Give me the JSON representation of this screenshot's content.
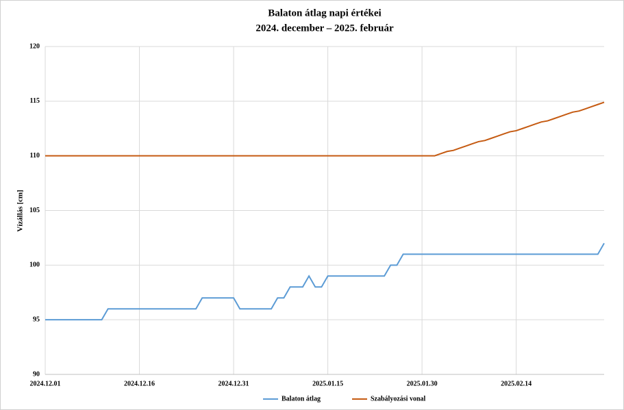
{
  "chart_data": {
    "type": "line",
    "title": "Balaton átlag napi értékei",
    "subtitle": "2024. december  – 2025. február",
    "ylabel": "Vízállás [cm]",
    "x": [
      "2024.12.01",
      "2024.12.02",
      "2024.12.03",
      "2024.12.04",
      "2024.12.05",
      "2024.12.06",
      "2024.12.07",
      "2024.12.08",
      "2024.12.09",
      "2024.12.10",
      "2024.12.11",
      "2024.12.12",
      "2024.12.13",
      "2024.12.14",
      "2024.12.15",
      "2024.12.16",
      "2024.12.17",
      "2024.12.18",
      "2024.12.19",
      "2024.12.20",
      "2024.12.21",
      "2024.12.22",
      "2024.12.23",
      "2024.12.24",
      "2024.12.25",
      "2024.12.26",
      "2024.12.27",
      "2024.12.28",
      "2024.12.29",
      "2024.12.30",
      "2024.12.31",
      "2025.01.01",
      "2025.01.02",
      "2025.01.03",
      "2025.01.04",
      "2025.01.05",
      "2025.01.06",
      "2025.01.07",
      "2025.01.08",
      "2025.01.09",
      "2025.01.10",
      "2025.01.11",
      "2025.01.12",
      "2025.01.13",
      "2025.01.14",
      "2025.01.15",
      "2025.01.16",
      "2025.01.17",
      "2025.01.18",
      "2025.01.19",
      "2025.01.20",
      "2025.01.21",
      "2025.01.22",
      "2025.01.23",
      "2025.01.24",
      "2025.01.25",
      "2025.01.26",
      "2025.01.27",
      "2025.01.28",
      "2025.01.29",
      "2025.01.30",
      "2025.01.31",
      "2025.02.01",
      "2025.02.02",
      "2025.02.03",
      "2025.02.04",
      "2025.02.05",
      "2025.02.06",
      "2025.02.07",
      "2025.02.08",
      "2025.02.09",
      "2025.02.10",
      "2025.02.11",
      "2025.02.12",
      "2025.02.13",
      "2025.02.14",
      "2025.02.15",
      "2025.02.16",
      "2025.02.17",
      "2025.02.18",
      "2025.02.19",
      "2025.02.20",
      "2025.02.21",
      "2025.02.22",
      "2025.02.23",
      "2025.02.24",
      "2025.02.25",
      "2025.02.26",
      "2025.02.27",
      "2025.02.28"
    ],
    "series": [
      {
        "name": "Balaton átlag",
        "color": "#5b9bd5",
        "values": [
          95,
          95,
          95,
          95,
          95,
          95,
          95,
          95,
          95,
          95,
          96,
          96,
          96,
          96,
          96,
          96,
          96,
          96,
          96,
          96,
          96,
          96,
          96,
          96,
          96,
          97,
          97,
          97,
          97,
          97,
          97,
          96,
          96,
          96,
          96,
          96,
          96,
          97,
          97,
          98,
          98,
          98,
          99,
          98,
          98,
          99,
          99,
          99,
          99,
          99,
          99,
          99,
          99,
          99,
          99,
          100,
          100,
          101,
          101,
          101,
          101,
          101,
          101,
          101,
          101,
          101,
          101,
          101,
          101,
          101,
          101,
          101,
          101,
          101,
          101,
          101,
          101,
          101,
          101,
          101,
          101,
          101,
          101,
          101,
          101,
          101,
          101,
          101,
          101,
          102
        ]
      },
      {
        "name": "Szabályozási vonal",
        "color": "#c55a11",
        "values": [
          110,
          110,
          110,
          110,
          110,
          110,
          110,
          110,
          110,
          110,
          110,
          110,
          110,
          110,
          110,
          110,
          110,
          110,
          110,
          110,
          110,
          110,
          110,
          110,
          110,
          110,
          110,
          110,
          110,
          110,
          110,
          110,
          110,
          110,
          110,
          110,
          110,
          110,
          110,
          110,
          110,
          110,
          110,
          110,
          110,
          110,
          110,
          110,
          110,
          110,
          110,
          110,
          110,
          110,
          110,
          110,
          110,
          110,
          110,
          110,
          110,
          110,
          110,
          110.2,
          110.4,
          110.5,
          110.7,
          110.9,
          111.1,
          111.3,
          111.4,
          111.6,
          111.8,
          112.0,
          112.2,
          112.3,
          112.5,
          112.7,
          112.9,
          113.1,
          113.2,
          113.4,
          113.6,
          113.8,
          114.0,
          114.1,
          114.3,
          114.5,
          114.7,
          114.9
        ]
      }
    ],
    "xlim": [
      "2024.12.01",
      "2025.02.28"
    ],
    "xticks": [
      "2024.12.01",
      "2024.12.16",
      "2024.12.31",
      "2025.01.15",
      "2025.01.30",
      "2025.02.14"
    ],
    "ylim": [
      90,
      120
    ],
    "yticks": [
      90,
      95,
      100,
      105,
      110,
      115,
      120
    ],
    "grid": true,
    "legend": "bottom"
  }
}
